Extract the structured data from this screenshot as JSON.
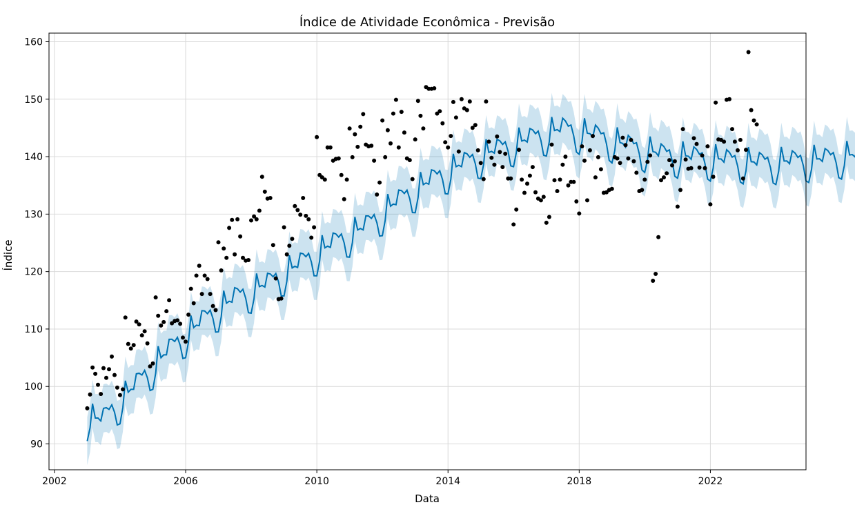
{
  "chart_data": {
    "type": "line",
    "title": "Índice de Atividade Econômica - Previsão",
    "xlabel": "Data",
    "ylabel": "Índice",
    "xlim": [
      "2001-11-01",
      "2024-12-01"
    ],
    "ylim": [
      85.5,
      161.5
    ],
    "grid": true,
    "legend": "none",
    "x_ticks": [
      {
        "date": "2002-01-01",
        "label": "2002"
      },
      {
        "date": "2006-01-01",
        "label": "2006"
      },
      {
        "date": "2010-01-01",
        "label": "2010"
      },
      {
        "date": "2014-01-01",
        "label": "2014"
      },
      {
        "date": "2018-01-01",
        "label": "2018"
      },
      {
        "date": "2022-01-01",
        "label": "2022"
      }
    ],
    "y_ticks": [
      90,
      100,
      110,
      120,
      130,
      140,
      150,
      160
    ],
    "colors": {
      "forecast": "#0072B2",
      "band": "#0072B2",
      "observed": "#000000"
    },
    "series": [
      {
        "kind": "scatter",
        "x": [
          "2003-01",
          "2003-02",
          "2003-03",
          "2003-04",
          "2003-05",
          "2003-06",
          "2003-07",
          "2003-08",
          "2003-09",
          "2003-10",
          "2003-11",
          "2003-12",
          "2004-01",
          "2004-02",
          "2004-03",
          "2004-04",
          "2004-05",
          "2004-06",
          "2004-07",
          "2004-08",
          "2004-09",
          "2004-10",
          "2004-11",
          "2004-12",
          "2005-01",
          "2005-02",
          "2005-03",
          "2005-04",
          "2005-05",
          "2005-06",
          "2005-07",
          "2005-08",
          "2005-09",
          "2005-10",
          "2005-11",
          "2005-12",
          "2006-01",
          "2006-02",
          "2006-03",
          "2006-04",
          "2006-05",
          "2006-06",
          "2006-07",
          "2006-08",
          "2006-09",
          "2006-10",
          "2006-11",
          "2006-12",
          "2007-01",
          "2007-02",
          "2007-03",
          "2007-04",
          "2007-05",
          "2007-06",
          "2007-07",
          "2007-08",
          "2007-09",
          "2007-10",
          "2007-11",
          "2007-12",
          "2008-01",
          "2008-02",
          "2008-03",
          "2008-04",
          "2008-05",
          "2008-06",
          "2008-07",
          "2008-08",
          "2008-09",
          "2008-10",
          "2008-11",
          "2008-12",
          "2009-01",
          "2009-02",
          "2009-03",
          "2009-04",
          "2009-05",
          "2009-06",
          "2009-07",
          "2009-08",
          "2009-09",
          "2009-10",
          "2009-11",
          "2009-12",
          "2010-01",
          "2010-02",
          "2010-03",
          "2010-04",
          "2010-05",
          "2010-06",
          "2010-07",
          "2010-08",
          "2010-09",
          "2010-10",
          "2010-11",
          "2010-12",
          "2011-01",
          "2011-02",
          "2011-03",
          "2011-04",
          "2011-05",
          "2011-06",
          "2011-07",
          "2011-08",
          "2011-09",
          "2011-10",
          "2011-11",
          "2011-12",
          "2012-01",
          "2012-02",
          "2012-03",
          "2012-04",
          "2012-05",
          "2012-06",
          "2012-07",
          "2012-08",
          "2012-09",
          "2012-10",
          "2012-11",
          "2012-12",
          "2013-01",
          "2013-02",
          "2013-03",
          "2013-04",
          "2013-05",
          "2013-06",
          "2013-07",
          "2013-08",
          "2013-09",
          "2013-10",
          "2013-11",
          "2013-12",
          "2014-01",
          "2014-02",
          "2014-03",
          "2014-04",
          "2014-05",
          "2014-06",
          "2014-07",
          "2014-08",
          "2014-09",
          "2014-10",
          "2014-11",
          "2014-12",
          "2015-01",
          "2015-02",
          "2015-03",
          "2015-04",
          "2015-05",
          "2015-06",
          "2015-07",
          "2015-08",
          "2015-09",
          "2015-10",
          "2015-11",
          "2015-12",
          "2016-01",
          "2016-02",
          "2016-03",
          "2016-04",
          "2016-05",
          "2016-06",
          "2016-07",
          "2016-08",
          "2016-09",
          "2016-10",
          "2016-11",
          "2016-12",
          "2017-01",
          "2017-02",
          "2017-03",
          "2017-04",
          "2017-05",
          "2017-06",
          "2017-07",
          "2017-08",
          "2017-09",
          "2017-10",
          "2017-11",
          "2017-12",
          "2018-01",
          "2018-02",
          "2018-03",
          "2018-04",
          "2018-05",
          "2018-06",
          "2018-07",
          "2018-08",
          "2018-09",
          "2018-10",
          "2018-11",
          "2018-12",
          "2019-01",
          "2019-02",
          "2019-03",
          "2019-04",
          "2019-05",
          "2019-06",
          "2019-07",
          "2019-08",
          "2019-09",
          "2019-10",
          "2019-11",
          "2019-12",
          "2020-01",
          "2020-02",
          "2020-03",
          "2020-04",
          "2020-05",
          "2020-06",
          "2020-07",
          "2020-08",
          "2020-09",
          "2020-10",
          "2020-11",
          "2020-12",
          "2021-01",
          "2021-02",
          "2021-03",
          "2021-04",
          "2021-05",
          "2021-06",
          "2021-07",
          "2021-08",
          "2021-09",
          "2021-10",
          "2021-11",
          "2021-12",
          "2022-01",
          "2022-02",
          "2022-03",
          "2022-04",
          "2022-05",
          "2022-06",
          "2022-07",
          "2022-08",
          "2022-09",
          "2022-10",
          "2022-11",
          "2022-12",
          "2023-01",
          "2023-02",
          "2023-03",
          "2023-04",
          "2023-05",
          "2023-06"
        ],
        "y": [
          96.2,
          98.6,
          103.3,
          102.2,
          100.3,
          98.7,
          103.2,
          101.5,
          103.0,
          105.2,
          102.0,
          99.8,
          98.5,
          99.5,
          112.0,
          107.4,
          106.6,
          107.2,
          111.3,
          110.8,
          108.9,
          109.6,
          107.5,
          103.5,
          104.0,
          115.5,
          112.3,
          110.6,
          111.2,
          113.1,
          115.0,
          111.0,
          111.4,
          111.5,
          110.9,
          108.5,
          107.8,
          112.5,
          117.0,
          114.5,
          119.3,
          121.0,
          116.1,
          119.3,
          118.7,
          116.1,
          114.0,
          113.3,
          125.1,
          120.2,
          124.0,
          122.4,
          127.6,
          129.0,
          123.0,
          129.1,
          126.1,
          122.4,
          121.9,
          122.0,
          128.9,
          129.6,
          129.1,
          130.6,
          136.5,
          133.9,
          132.7,
          132.8,
          124.6,
          118.8,
          115.2,
          115.3,
          127.7,
          123.0,
          124.5,
          125.7,
          131.4,
          130.7,
          129.9,
          132.8,
          129.7,
          129.1,
          125.9,
          127.7,
          143.4,
          136.8,
          136.4,
          136.0,
          141.6,
          141.6,
          139.3,
          139.6,
          139.7,
          136.8,
          132.6,
          136.0,
          144.9,
          139.9,
          143.9,
          141.7,
          145.2,
          147.4,
          142.1,
          141.8,
          141.9,
          139.3,
          133.4,
          135.5,
          146.3,
          139.9,
          144.6,
          142.3,
          147.5,
          149.9,
          141.6,
          147.8,
          144.2,
          139.7,
          139.4,
          136.1,
          143.0,
          149.7,
          147.1,
          144.9,
          152.1,
          151.8,
          151.8,
          151.9,
          147.5,
          147.9,
          145.8,
          142.5,
          141.6,
          143.6,
          149.5,
          146.8,
          140.9,
          150.0,
          148.4,
          148.1,
          149.6,
          145.0,
          145.5,
          141.1,
          138.9,
          136.1,
          149.6,
          142.6,
          139.8,
          138.6,
          143.5,
          140.8,
          138.2,
          140.5,
          136.2,
          136.2,
          128.2,
          130.8,
          141.2,
          136.0,
          133.7,
          135.3,
          136.7,
          138.2,
          133.8,
          132.7,
          132.4,
          133.0,
          128.5,
          129.5,
          142.1,
          135.9,
          134.0,
          136.0,
          138.6,
          140.0,
          135.0,
          135.6,
          135.6,
          132.2,
          130.1,
          141.8,
          139.3,
          132.4,
          141.1,
          143.6,
          136.4,
          139.9,
          137.8,
          133.7,
          133.8,
          134.2,
          134.4,
          139.9,
          139.7,
          138.9,
          143.3,
          142.0,
          139.7,
          142.9,
          139.2,
          137.2,
          134.0,
          134.2,
          136.0,
          139.1,
          140.2,
          118.4,
          119.6,
          126.0,
          135.9,
          136.4,
          137.1,
          139.4,
          138.5,
          139.2,
          131.3,
          134.2,
          144.8,
          139.5,
          137.9,
          138.0,
          143.2,
          142.2,
          138.1,
          140.2,
          138.0,
          141.8,
          131.7,
          136.5,
          149.4,
          143.0,
          142.9,
          142.6,
          149.9,
          150.0,
          144.8,
          142.6,
          141.1,
          142.9,
          136.2,
          141.2,
          158.2,
          148.1,
          146.3,
          145.6
        ]
      }
    ],
    "forecast": {
      "start": "2003-01",
      "level": [
        94.0,
        100.0,
        106.0,
        111.0,
        115.0,
        117.5,
        121.0,
        124.5,
        127.5,
        132.0,
        135.5,
        138.5,
        140.8,
        142.7,
        144.5,
        143.3,
        141.5,
        140.0,
        139.5,
        139.0,
        138.5,
        138.8,
        139.2,
        140.0
      ],
      "seasonal": [
        -3.5,
        -1.2,
        3.0,
        0.5,
        0.5,
        0.0,
        2.2,
        1.8,
        1.0,
        1.3,
        -0.5,
        -3.2
      ],
      "band_halfwidth": 4.2
    }
  }
}
